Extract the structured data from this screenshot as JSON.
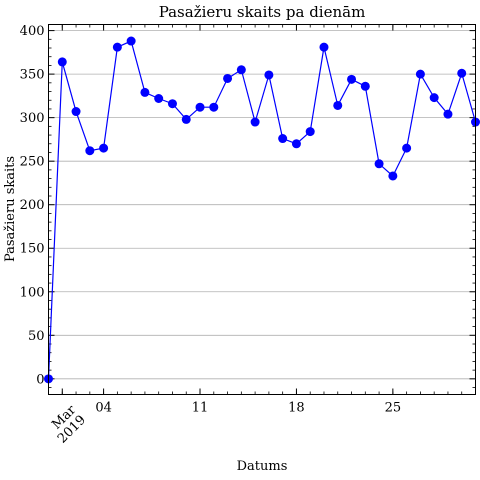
{
  "chart_data": {
    "type": "line",
    "title": "Pasažieru skaits pa dienām",
    "xlabel": "Datums",
    "ylabel": "Pasažieru skaits",
    "x_start_date": "2019-02-28",
    "x_end_date": "2019-03-31",
    "xlim": [
      "2019-02-28",
      "2019-03-31"
    ],
    "ylim": [
      -18,
      407
    ],
    "x_ticks": [
      {
        "date": "2019-03-01",
        "label": "Mar\n2019"
      },
      {
        "date": "2019-03-04",
        "label": "04"
      },
      {
        "date": "2019-03-11",
        "label": "11"
      },
      {
        "date": "2019-03-18",
        "label": "18"
      },
      {
        "date": "2019-03-25",
        "label": "25"
      }
    ],
    "y_ticks": [
      0,
      50,
      100,
      150,
      200,
      250,
      300,
      350,
      400
    ],
    "grid": "y",
    "color": "#0000ff",
    "series": [
      {
        "name": "",
        "x": [
          "2019-02-28",
          "2019-03-01",
          "2019-03-02",
          "2019-03-03",
          "2019-03-04",
          "2019-03-05",
          "2019-03-06",
          "2019-03-07",
          "2019-03-08",
          "2019-03-09",
          "2019-03-10",
          "2019-03-11",
          "2019-03-12",
          "2019-03-13",
          "2019-03-14",
          "2019-03-15",
          "2019-03-16",
          "2019-03-17",
          "2019-03-18",
          "2019-03-19",
          "2019-03-20",
          "2019-03-21",
          "2019-03-22",
          "2019-03-23",
          "2019-03-24",
          "2019-03-25",
          "2019-03-26",
          "2019-03-27",
          "2019-03-28",
          "2019-03-29",
          "2019-03-30",
          "2019-03-31"
        ],
        "values": [
          0,
          364,
          307,
          262,
          265,
          381,
          388,
          329,
          322,
          316,
          298,
          312,
          312,
          345,
          355,
          295,
          349,
          276,
          270,
          284,
          381,
          314,
          344,
          336,
          247,
          233,
          265,
          350,
          323,
          304,
          351,
          295
        ]
      }
    ]
  }
}
